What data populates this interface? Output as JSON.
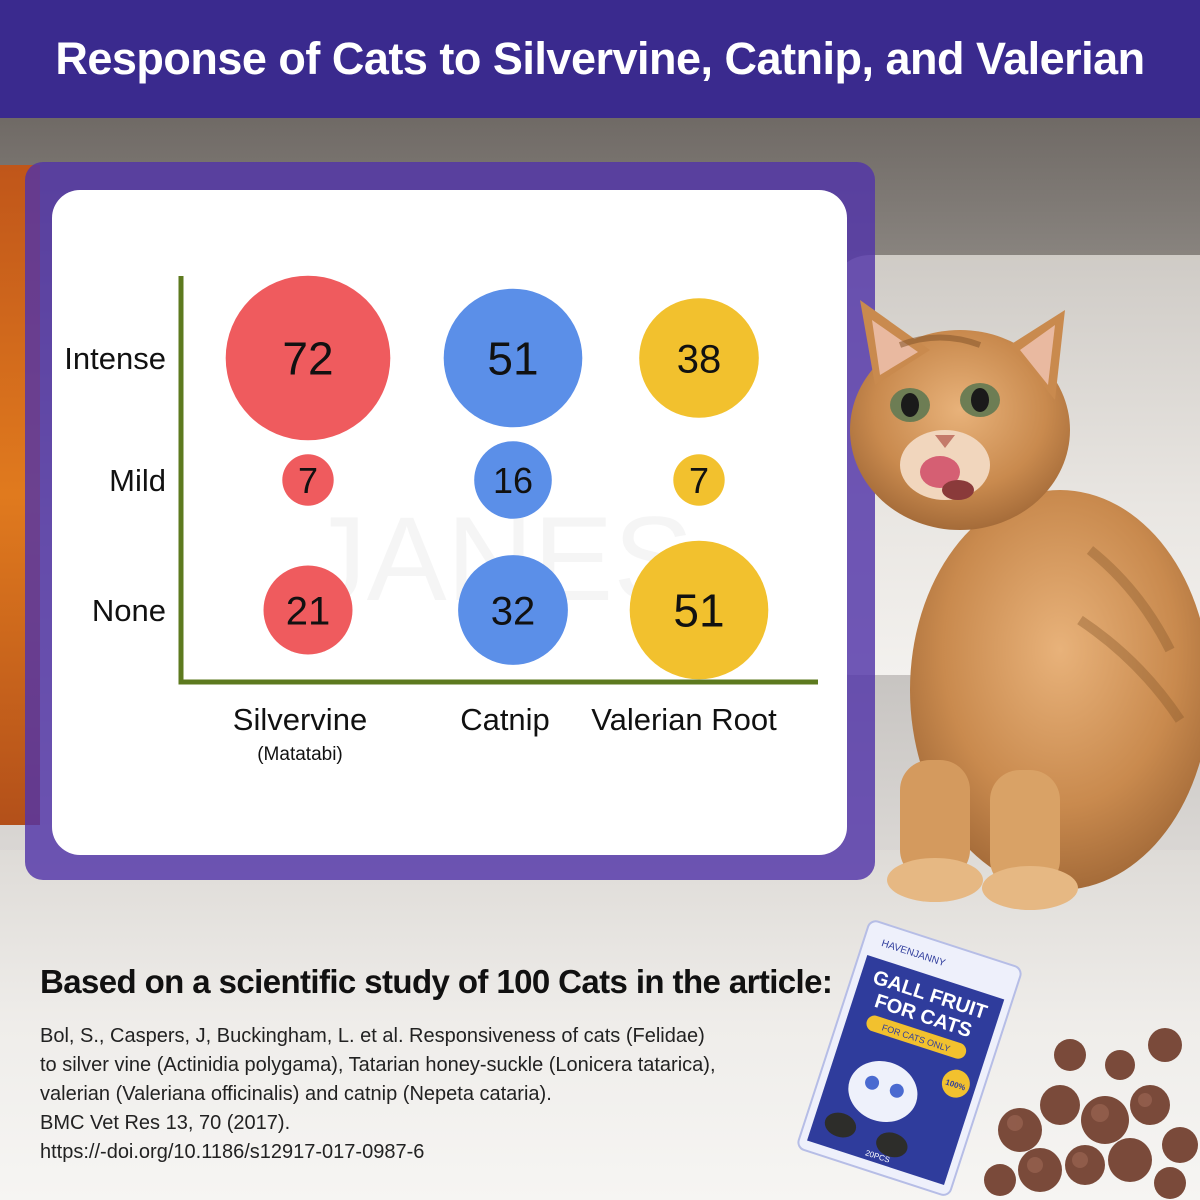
{
  "title": "Response of Cats to Silvervine, Catnip, and Valerian",
  "chart_data": {
    "type": "bubble",
    "x_categories": [
      {
        "label": "Silvervine",
        "sublabel": "(Matatabi)"
      },
      {
        "label": "Catnip",
        "sublabel": ""
      },
      {
        "label": "Valerian Root",
        "sublabel": ""
      }
    ],
    "y_categories": [
      "Intense",
      "Mild",
      "None"
    ],
    "series": [
      {
        "name": "Silvervine",
        "color": "#ef5b5e",
        "values": {
          "Intense": 72,
          "Mild": 7,
          "None": 21
        }
      },
      {
        "name": "Catnip",
        "color": "#5b8fe8",
        "values": {
          "Intense": 51,
          "Mild": 16,
          "None": 32
        }
      },
      {
        "name": "Valerian Root",
        "color": "#f2c12e",
        "values": {
          "Intense": 38,
          "Mild": 7,
          "None": 51
        }
      }
    ],
    "axis_color": "#5d7a1f"
  },
  "watermark": "JANES",
  "product": {
    "brand": "HAVENJANNY",
    "name_line1": "GALL FRUIT",
    "name_line2": "FOR CATS",
    "tag": "FOR CATS ONLY",
    "badge": "100%",
    "count": "20PCS"
  },
  "footer": {
    "heading": "Based on a scientific study of 100 Cats in the article:",
    "citation_lines": [
      "Bol, S., Caspers, J, Buckingham, L. et al. Responsiveness of cats (Felidae)",
      "to silver vine (Actinidia polygama), Tatarian honey-suckle (Lonicera tatarica),",
      "valerian (Valeriana officinalis) and catnip (Nepeta cataria).",
      "BMC Vet Res 13, 70 (2017).",
      "https://-doi.org/10.1186/s12917-017-0987-6"
    ]
  }
}
